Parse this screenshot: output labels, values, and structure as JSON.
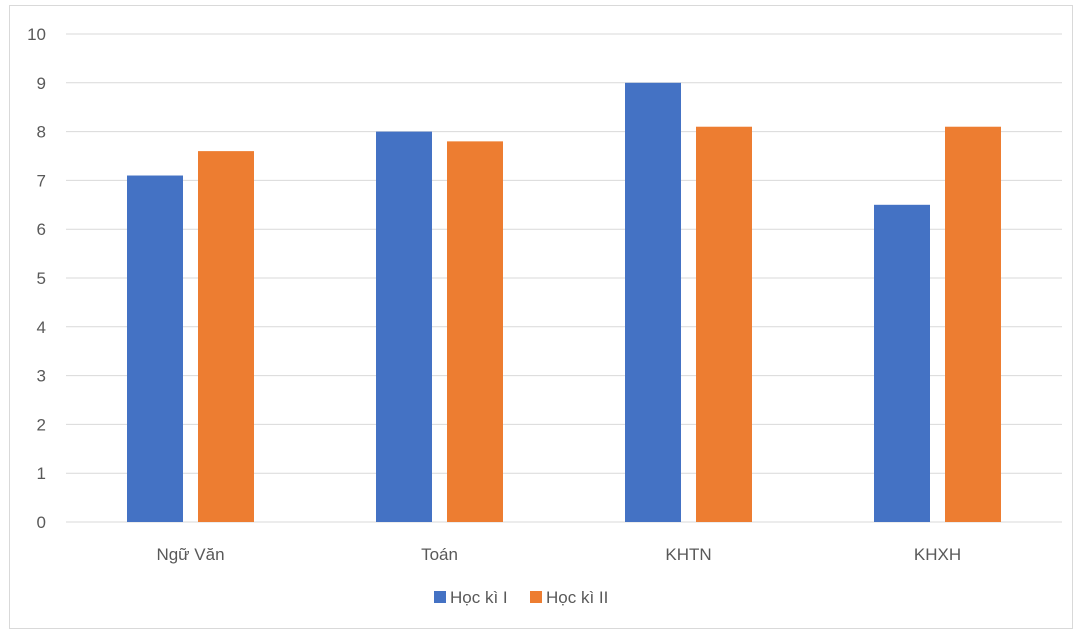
{
  "chart_data": {
    "type": "bar",
    "categories": [
      "Ngữ Văn",
      "Toán",
      "KHTN",
      "KHXH"
    ],
    "series": [
      {
        "name": "Học kì I",
        "values": [
          7.1,
          8.0,
          9.0,
          6.5
        ],
        "color": "#4472C4"
      },
      {
        "name": "Học kì II",
        "values": [
          7.6,
          7.8,
          8.1,
          8.1
        ],
        "color": "#ED7D31"
      }
    ],
    "ylim": [
      0,
      10
    ],
    "yticks": [
      0,
      1,
      2,
      3,
      4,
      5,
      6,
      7,
      8,
      9,
      10
    ],
    "grid": true,
    "gridline_color": "#d9d9d9",
    "legend_position": "bottom"
  }
}
